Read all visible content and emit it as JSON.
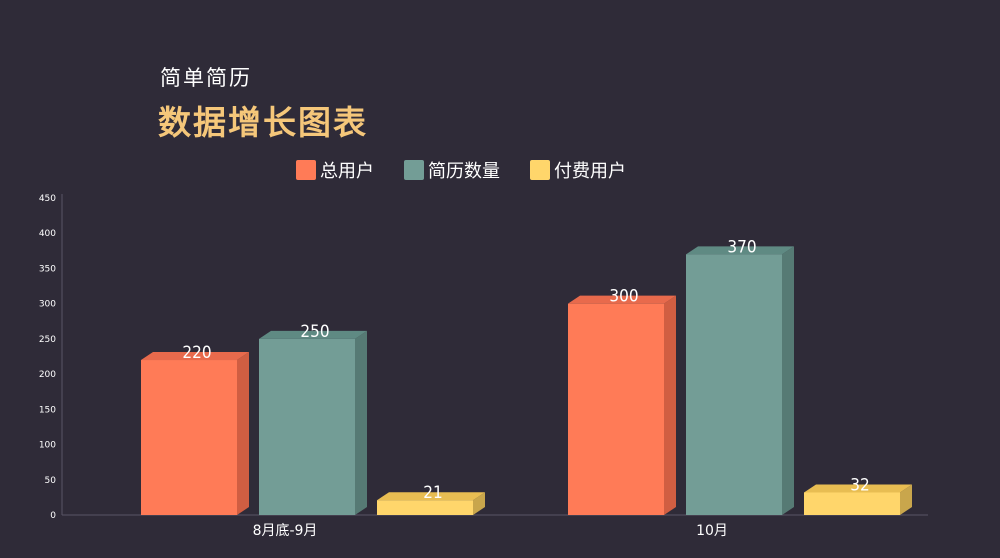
{
  "header": {
    "subtitle": "简单简历",
    "title": "数据增长图表"
  },
  "colors": {
    "background": "#2f2b38",
    "title": "#f5c77a"
  },
  "chart_data": {
    "type": "bar",
    "bar_style": "3d",
    "categories": [
      "8月底-9月",
      "10月"
    ],
    "series": [
      {
        "name": "总用户",
        "values": [
          220,
          300
        ],
        "color": "#ff7b57",
        "side_color": "#d05e42",
        "top_color": "#e86a4c"
      },
      {
        "name": "简历数量",
        "values": [
          250,
          370
        ],
        "color": "#739d96",
        "side_color": "#567a74",
        "top_color": "#5f8a83"
      },
      {
        "name": "付费用户",
        "values": [
          21,
          32
        ],
        "color": "#ffd66b",
        "side_color": "#c9a64c",
        "top_color": "#e8bd52"
      }
    ],
    "yticks": [
      0,
      50,
      100,
      150,
      200,
      250,
      300,
      350,
      400,
      450
    ],
    "ylim": [
      0,
      450
    ],
    "legend_position": "top-center",
    "grid": false,
    "data_labels": true
  }
}
